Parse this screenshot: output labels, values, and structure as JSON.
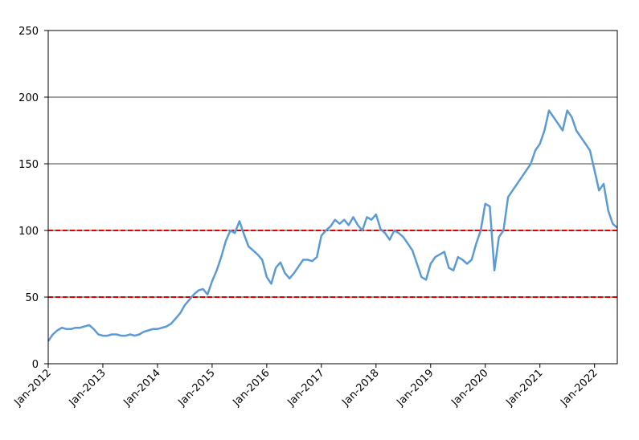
{
  "chart_data": {
    "type": "line",
    "x": [
      "2012-01",
      "2012-02",
      "2012-03",
      "2012-04",
      "2012-05",
      "2012-06",
      "2012-07",
      "2012-08",
      "2012-09",
      "2012-10",
      "2012-11",
      "2012-12",
      "2013-01",
      "2013-02",
      "2013-03",
      "2013-04",
      "2013-05",
      "2013-06",
      "2013-07",
      "2013-08",
      "2013-09",
      "2013-10",
      "2013-11",
      "2013-12",
      "2014-01",
      "2014-02",
      "2014-03",
      "2014-04",
      "2014-05",
      "2014-06",
      "2014-07",
      "2014-08",
      "2014-09",
      "2014-10",
      "2014-11",
      "2014-12",
      "2015-01",
      "2015-02",
      "2015-03",
      "2015-04",
      "2015-05",
      "2015-06",
      "2015-07",
      "2015-08",
      "2015-09",
      "2015-10",
      "2015-11",
      "2015-12",
      "2016-01",
      "2016-02",
      "2016-03",
      "2016-04",
      "2016-05",
      "2016-06",
      "2016-07",
      "2016-08",
      "2016-09",
      "2016-10",
      "2016-11",
      "2016-12",
      "2017-01",
      "2017-02",
      "2017-03",
      "2017-04",
      "2017-05",
      "2017-06",
      "2017-07",
      "2017-08",
      "2017-09",
      "2017-10",
      "2017-11",
      "2017-12",
      "2018-01",
      "2018-02",
      "2018-03",
      "2018-04",
      "2018-05",
      "2018-06",
      "2018-07",
      "2018-08",
      "2018-09",
      "2018-10",
      "2018-11",
      "2018-12",
      "2019-01",
      "2019-02",
      "2019-03",
      "2019-04",
      "2019-05",
      "2019-06",
      "2019-07",
      "2019-08",
      "2019-09",
      "2019-10",
      "2019-11",
      "2019-12",
      "2020-01",
      "2020-02",
      "2020-03",
      "2020-04",
      "2020-05",
      "2020-06",
      "2020-07",
      "2020-08",
      "2020-09",
      "2020-10",
      "2020-11",
      "2020-12",
      "2021-01",
      "2021-02",
      "2021-03",
      "2021-04",
      "2021-05",
      "2021-06",
      "2021-07",
      "2021-08",
      "2021-09",
      "2021-10",
      "2021-11",
      "2021-12",
      "2022-01",
      "2022-02",
      "2022-03",
      "2022-04",
      "2022-05",
      "2022-06"
    ],
    "values": [
      17,
      22,
      25,
      27,
      26,
      26,
      27,
      27,
      28,
      29,
      26,
      22,
      21,
      21,
      22,
      22,
      21,
      21,
      22,
      21,
      22,
      24,
      25,
      26,
      26,
      27,
      28,
      30,
      34,
      38,
      44,
      48,
      52,
      55,
      56,
      52,
      62,
      70,
      80,
      92,
      100,
      98,
      107,
      97,
      88,
      85,
      82,
      78,
      65,
      60,
      72,
      76,
      68,
      64,
      68,
      73,
      78,
      78,
      77,
      80,
      96,
      100,
      103,
      108,
      105,
      108,
      104,
      110,
      104,
      100,
      110,
      108,
      112,
      101,
      98,
      93,
      100,
      98,
      95,
      90,
      85,
      75,
      65,
      63,
      75,
      80,
      82,
      84,
      72,
      70,
      80,
      78,
      75,
      78,
      90,
      100,
      120,
      118,
      70,
      95,
      100,
      125,
      130,
      135,
      140,
      145,
      150,
      160,
      165,
      175,
      190,
      185,
      180,
      175,
      190,
      185,
      175,
      170,
      165,
      160,
      145,
      130,
      135,
      115,
      105,
      102
    ],
    "color": "#5b9bd5",
    "xlim": [
      "2012-01",
      "2022-06"
    ],
    "xticks": [
      {
        "value": "2012-01",
        "label": "Jan-2012"
      },
      {
        "value": "2013-01",
        "label": "Jan-2013"
      },
      {
        "value": "2014-01",
        "label": "Jan-2014"
      },
      {
        "value": "2015-01",
        "label": "Jan-2015"
      },
      {
        "value": "2016-01",
        "label": "Jan-2016"
      },
      {
        "value": "2017-01",
        "label": "Jan-2017"
      },
      {
        "value": "2018-01",
        "label": "Jan-2018"
      },
      {
        "value": "2019-01",
        "label": "Jan-2019"
      },
      {
        "value": "2020-01",
        "label": "Jan-2020"
      },
      {
        "value": "2021-01",
        "label": "Jan-2021"
      },
      {
        "value": "2022-01",
        "label": "Jan-2022"
      }
    ],
    "ylim": [
      0,
      250
    ],
    "yticks": [
      0,
      50,
      100,
      150,
      200,
      250
    ],
    "grid": true,
    "reference_lines": [
      50,
      100
    ],
    "reference_color": "#e00000"
  }
}
